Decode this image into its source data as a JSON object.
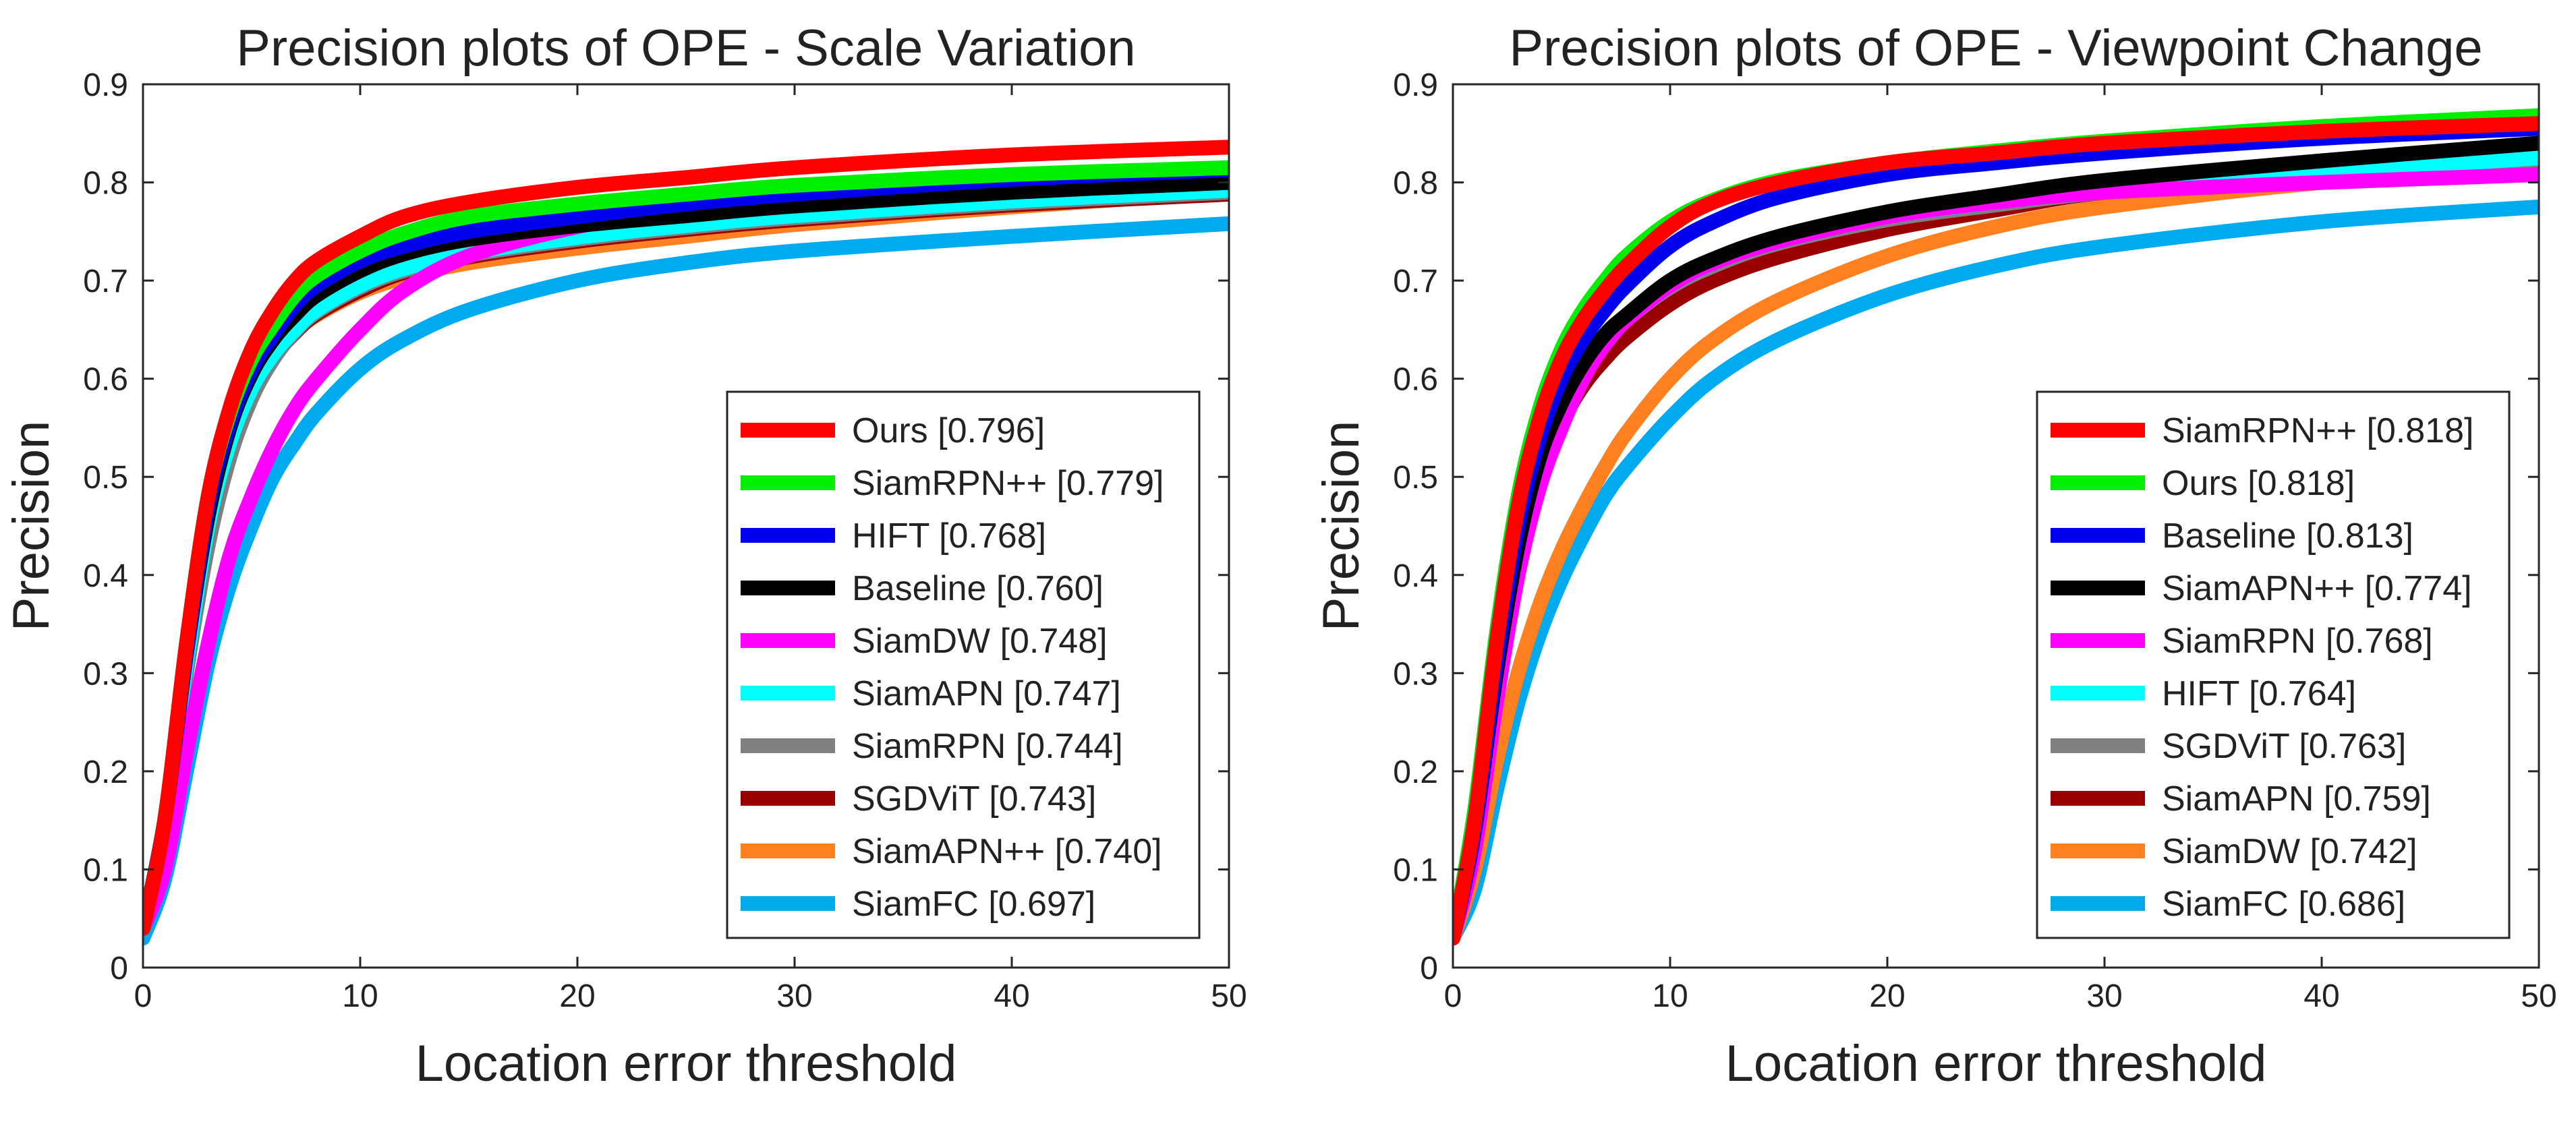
{
  "chart_data": [
    {
      "type": "line",
      "title": "Precision plots of OPE - Scale Variation",
      "xlabel": "Location error threshold",
      "ylabel": "Precision",
      "xlim": [
        0,
        50
      ],
      "ylim": [
        0,
        0.9
      ],
      "x_ticks": [
        0,
        10,
        20,
        30,
        40,
        50
      ],
      "y_ticks": [
        0,
        0.1,
        0.2,
        0.3,
        0.4,
        0.5,
        0.6,
        0.7,
        0.8,
        0.9
      ],
      "x_tick_labels": [
        "0",
        "10",
        "20",
        "30",
        "40",
        "50"
      ],
      "y_tick_labels": [
        "0",
        "0.1",
        "0.2",
        "0.3",
        "0.4",
        "0.5",
        "0.6",
        "0.7",
        "0.8",
        "0.9"
      ],
      "legend_position": "bottom-right",
      "x": [
        0,
        1,
        2,
        3,
        4,
        5,
        6,
        7,
        8,
        10,
        12,
        15,
        20,
        25,
        30,
        40,
        50
      ],
      "series": [
        {
          "name": "Ours",
          "score": "0.796",
          "label": "Ours [0.796]",
          "color": "#ff0000",
          "values": [
            0.04,
            0.15,
            0.33,
            0.48,
            0.57,
            0.63,
            0.67,
            0.7,
            0.72,
            0.745,
            0.765,
            0.78,
            0.795,
            0.805,
            0.815,
            0.828,
            0.836
          ]
        },
        {
          "name": "SiamRPN++",
          "score": "0.779",
          "label": "SiamRPN++ [0.779]",
          "color": "#00ee00",
          "values": [
            0.04,
            0.15,
            0.33,
            0.48,
            0.565,
            0.62,
            0.655,
            0.685,
            0.705,
            0.73,
            0.748,
            0.765,
            0.778,
            0.788,
            0.797,
            0.808,
            0.815
          ]
        },
        {
          "name": "HIFT",
          "score": "0.768",
          "label": "HIFT [0.768]",
          "color": "#0000ee",
          "values": [
            0.04,
            0.15,
            0.32,
            0.47,
            0.555,
            0.61,
            0.645,
            0.675,
            0.695,
            0.72,
            0.735,
            0.75,
            0.765,
            0.778,
            0.788,
            0.803,
            0.813
          ]
        },
        {
          "name": "Baseline",
          "score": "0.760",
          "label": "Baseline [0.760]",
          "color": "#000000",
          "values": [
            0.04,
            0.15,
            0.32,
            0.46,
            0.55,
            0.605,
            0.64,
            0.665,
            0.685,
            0.71,
            0.727,
            0.742,
            0.756,
            0.766,
            0.776,
            0.79,
            0.8
          ]
        },
        {
          "name": "SiamDW",
          "score": "0.748",
          "label": "SiamDW [0.748]",
          "color": "#ff00ff",
          "values": [
            0.04,
            0.1,
            0.22,
            0.33,
            0.42,
            0.48,
            0.53,
            0.57,
            0.6,
            0.65,
            0.69,
            0.725,
            0.755,
            0.773,
            0.785,
            0.8,
            0.81
          ]
        },
        {
          "name": "SiamAPN",
          "score": "0.747",
          "label": "SiamAPN [0.747]",
          "color": "#00ffff",
          "values": [
            0.04,
            0.15,
            0.31,
            0.45,
            0.535,
            0.59,
            0.625,
            0.65,
            0.67,
            0.695,
            0.712,
            0.728,
            0.744,
            0.756,
            0.766,
            0.781,
            0.792
          ]
        },
        {
          "name": "SiamRPN",
          "score": "0.744",
          "label": "SiamRPN [0.744]",
          "color": "#808080",
          "values": [
            0.04,
            0.14,
            0.3,
            0.43,
            0.52,
            0.58,
            0.62,
            0.648,
            0.668,
            0.693,
            0.71,
            0.726,
            0.742,
            0.754,
            0.764,
            0.779,
            0.79
          ]
        },
        {
          "name": "SGDViT",
          "score": "0.743",
          "label": "SGDViT [0.743]",
          "color": "#990000",
          "values": [
            0.04,
            0.15,
            0.31,
            0.45,
            0.535,
            0.59,
            0.622,
            0.647,
            0.666,
            0.69,
            0.708,
            0.724,
            0.74,
            0.752,
            0.762,
            0.777,
            0.788
          ]
        },
        {
          "name": "SiamAPN++",
          "score": "0.740",
          "label": "SiamAPN++ [0.740]",
          "color": "#ff8020",
          "values": [
            0.04,
            0.15,
            0.32,
            0.455,
            0.54,
            0.595,
            0.625,
            0.648,
            0.665,
            0.688,
            0.703,
            0.718,
            0.733,
            0.745,
            0.757,
            0.775,
            0.79
          ]
        },
        {
          "name": "SiamFC",
          "score": "0.697",
          "label": "SiamFC [0.697]",
          "color": "#00aaee",
          "values": [
            0.03,
            0.09,
            0.2,
            0.31,
            0.39,
            0.45,
            0.5,
            0.535,
            0.565,
            0.61,
            0.64,
            0.67,
            0.7,
            0.718,
            0.73,
            0.745,
            0.758
          ]
        }
      ]
    },
    {
      "type": "line",
      "title": "Precision plots of OPE - Viewpoint Change",
      "xlabel": "Location error threshold",
      "ylabel": "Precision",
      "xlim": [
        0,
        50
      ],
      "ylim": [
        0,
        0.9
      ],
      "x_ticks": [
        0,
        10,
        20,
        30,
        40,
        50
      ],
      "y_ticks": [
        0,
        0.1,
        0.2,
        0.3,
        0.4,
        0.5,
        0.6,
        0.7,
        0.8,
        0.9
      ],
      "x_tick_labels": [
        "0",
        "10",
        "20",
        "30",
        "40",
        "50"
      ],
      "y_tick_labels": [
        "0",
        "0.1",
        "0.2",
        "0.3",
        "0.4",
        "0.5",
        "0.6",
        "0.7",
        "0.8",
        "0.9"
      ],
      "legend_position": "bottom-right",
      "x": [
        0,
        1,
        2,
        3,
        4,
        5,
        6,
        7,
        8,
        10,
        12,
        15,
        20,
        25,
        30,
        40,
        50
      ],
      "series": [
        {
          "name": "SiamRPN++",
          "score": "0.818",
          "label": "SiamRPN++ [0.818]",
          "color": "#ff0000",
          "values": [
            0.03,
            0.15,
            0.33,
            0.47,
            0.56,
            0.62,
            0.66,
            0.69,
            0.715,
            0.755,
            0.78,
            0.8,
            0.82,
            0.83,
            0.84,
            0.852,
            0.86
          ]
        },
        {
          "name": "Ours",
          "score": "0.818",
          "label": "Ours [0.818]",
          "color": "#00ee00",
          "values": [
            0.03,
            0.16,
            0.34,
            0.48,
            0.57,
            0.63,
            0.67,
            0.7,
            0.725,
            0.76,
            0.782,
            0.802,
            0.82,
            0.832,
            0.842,
            0.857,
            0.868
          ]
        },
        {
          "name": "Baseline",
          "score": "0.813",
          "label": "Baseline [0.813]",
          "color": "#0000ee",
          "values": [
            0.03,
            0.14,
            0.31,
            0.45,
            0.54,
            0.6,
            0.64,
            0.67,
            0.695,
            0.735,
            0.76,
            0.785,
            0.808,
            0.82,
            0.83,
            0.845,
            0.855
          ]
        },
        {
          "name": "SiamAPN++",
          "score": "0.774",
          "label": "SiamAPN++ [0.774]",
          "color": "#000000",
          "values": [
            0.03,
            0.14,
            0.3,
            0.43,
            0.52,
            0.575,
            0.615,
            0.645,
            0.665,
            0.7,
            0.722,
            0.745,
            0.77,
            0.787,
            0.802,
            0.822,
            0.84
          ]
        },
        {
          "name": "SiamRPN",
          "score": "0.768",
          "label": "SiamRPN [0.768]",
          "color": "#ff00ff",
          "values": [
            0.03,
            0.12,
            0.27,
            0.4,
            0.49,
            0.55,
            0.6,
            0.635,
            0.66,
            0.695,
            0.718,
            0.74,
            0.765,
            0.78,
            0.79,
            0.8,
            0.808
          ]
        },
        {
          "name": "HIFT",
          "score": "0.764",
          "label": "HIFT [0.764]",
          "color": "#00ffff",
          "values": [
            0.03,
            0.13,
            0.29,
            0.42,
            0.51,
            0.565,
            0.605,
            0.635,
            0.66,
            0.695,
            0.718,
            0.742,
            0.765,
            0.78,
            0.792,
            0.81,
            0.825
          ]
        },
        {
          "name": "SGDViT",
          "score": "0.763",
          "label": "SGDViT [0.763]",
          "color": "#808080",
          "values": [
            0.03,
            0.14,
            0.3,
            0.43,
            0.515,
            0.57,
            0.608,
            0.637,
            0.66,
            0.693,
            0.715,
            0.738,
            0.762,
            0.777,
            0.79,
            0.808,
            0.822
          ]
        },
        {
          "name": "SiamAPN",
          "score": "0.759",
          "label": "SiamAPN [0.759]",
          "color": "#990000",
          "values": [
            0.03,
            0.13,
            0.29,
            0.42,
            0.5,
            0.555,
            0.593,
            0.62,
            0.642,
            0.676,
            0.7,
            0.724,
            0.752,
            0.772,
            0.79,
            0.81,
            0.828
          ]
        },
        {
          "name": "SiamDW",
          "score": "0.742",
          "label": "SiamDW [0.742]",
          "color": "#ff8020",
          "values": [
            0.03,
            0.1,
            0.21,
            0.3,
            0.37,
            0.425,
            0.47,
            0.51,
            0.545,
            0.6,
            0.64,
            0.68,
            0.725,
            0.755,
            0.775,
            0.8,
            0.815
          ]
        },
        {
          "name": "SiamFC",
          "score": "0.686",
          "label": "SiamFC [0.686]",
          "color": "#00aaee",
          "values": [
            0.03,
            0.08,
            0.18,
            0.27,
            0.34,
            0.395,
            0.44,
            0.48,
            0.51,
            0.56,
            0.6,
            0.64,
            0.685,
            0.715,
            0.735,
            0.76,
            0.775
          ]
        }
      ]
    }
  ]
}
